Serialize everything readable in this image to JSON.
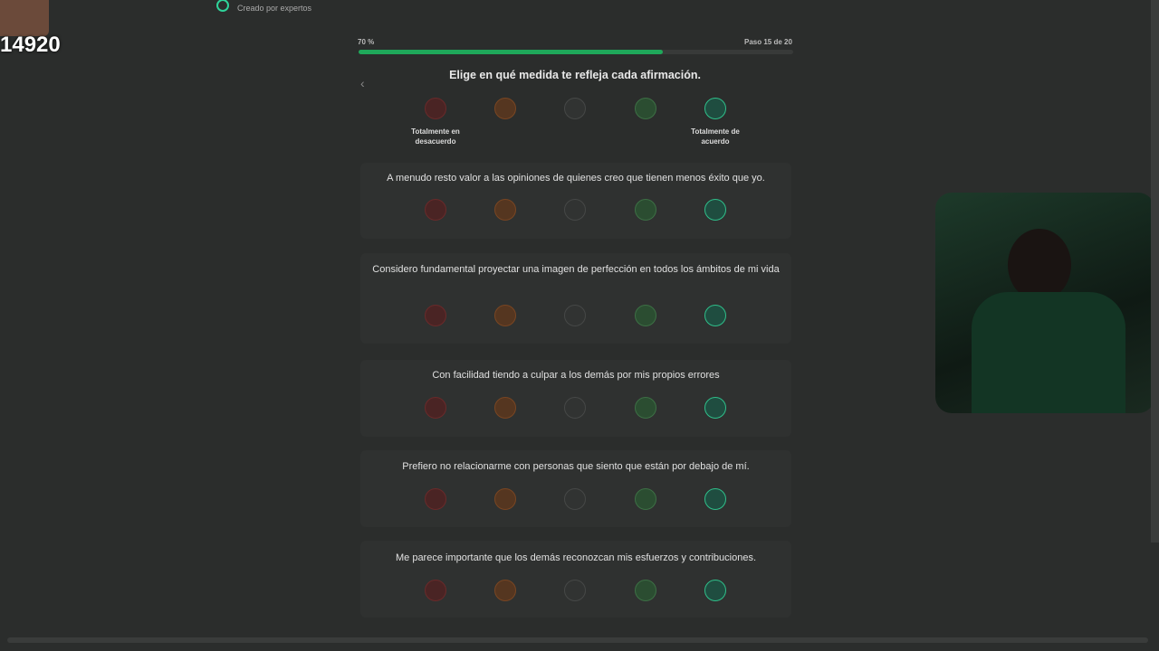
{
  "header": {
    "subtitle": "Creado por expertos"
  },
  "progress": {
    "label": "70 %",
    "value": 70,
    "step": "Paso 15 de 20"
  },
  "scale": {
    "title": "Elige en qué medida te refleja cada afirmación.",
    "left_label": "Totalmente en desacuerdo",
    "right_label": "Totalmente de acuerdo"
  },
  "questions": [
    "A menudo resto valor a las opiniones de quienes creo que tienen menos éxito que yo.",
    "Considero fundamental proyectar una imagen de perfección en todos los ámbitos de mi vida",
    "Con facilidad tiendo a culpar a los demás por mis propios errores",
    "Prefiero no relacionarme con personas que siento que están por debajo de mí.",
    "Me parece importante que los demás reconozcan mis esfuerzos y contribuciones."
  ],
  "overlay": {
    "counter": "14920"
  }
}
